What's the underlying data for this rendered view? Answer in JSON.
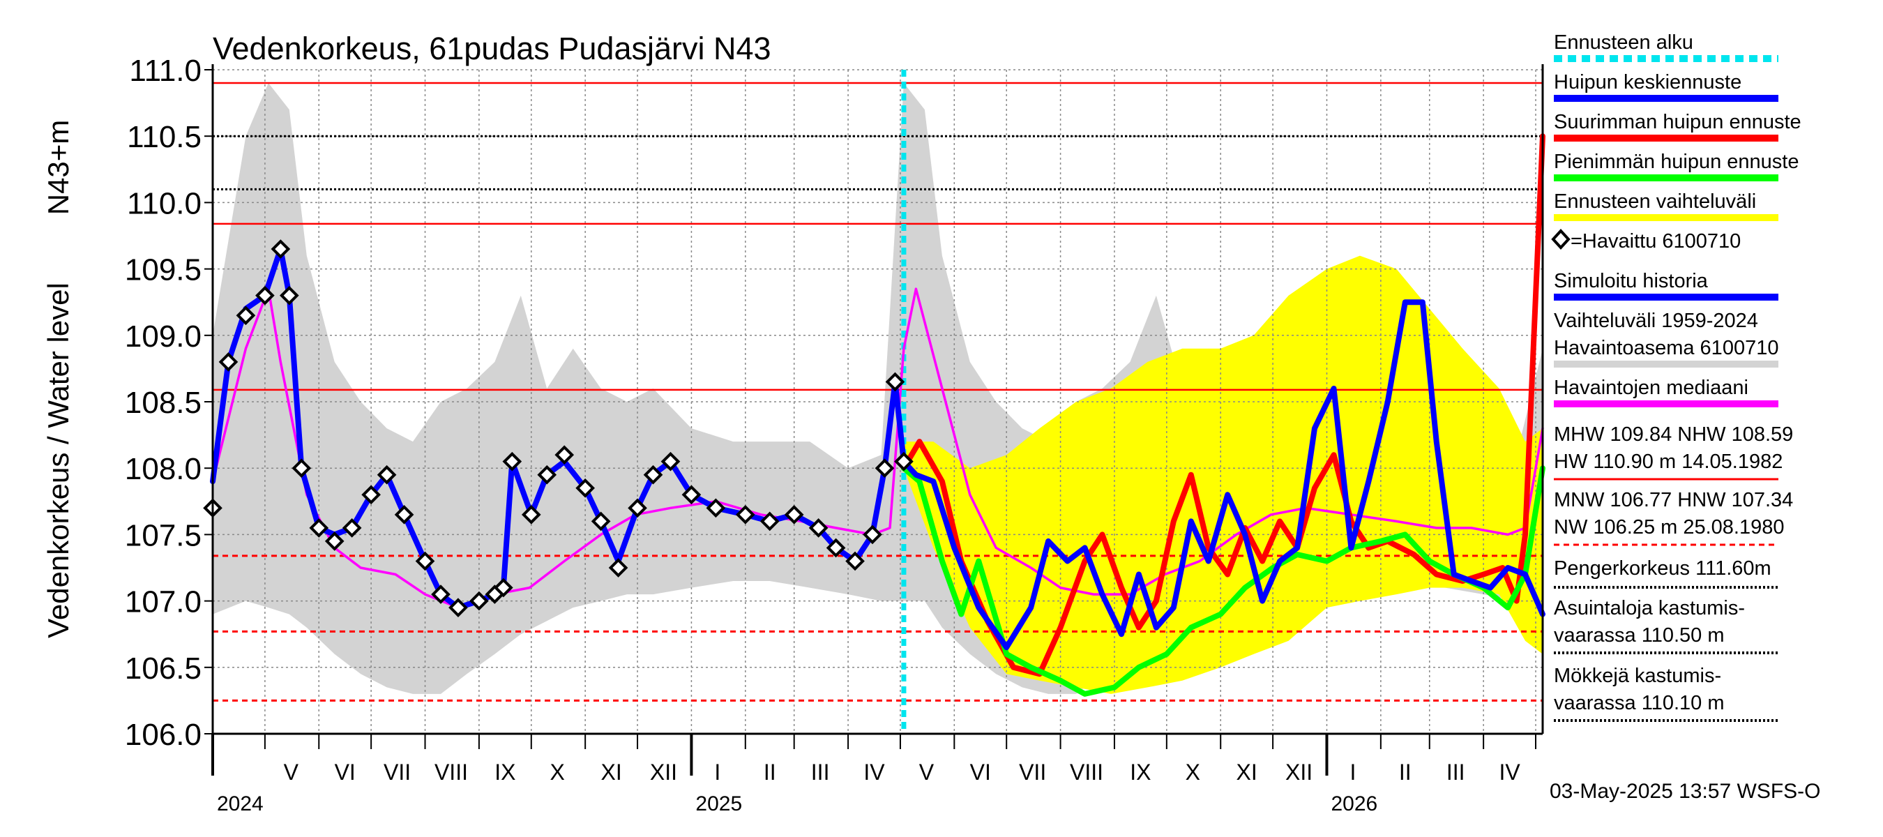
{
  "chart_data": {
    "type": "line",
    "title": "Vedenkorkeus, 61pudas Pudasjärvi N43",
    "ylabel": "Vedenkorkeus / Water level",
    "ylabel_unit": "N43+m",
    "ylim": [
      106.0,
      111.0
    ],
    "yticks": [
      "106.0",
      "106.5",
      "107.0",
      "107.5",
      "108.0",
      "108.5",
      "109.0",
      "109.5",
      "110.0",
      "110.5",
      "111.0"
    ],
    "x_range": [
      "2024-04-01",
      "2026-05-05"
    ],
    "forecast_start": "2025-05-03",
    "month_labels": [
      {
        "label": "V",
        "date": "2024-05-16"
      },
      {
        "label": "VI",
        "date": "2024-06-16"
      },
      {
        "label": "VII",
        "date": "2024-07-16"
      },
      {
        "label": "VIII",
        "date": "2024-08-16"
      },
      {
        "label": "IX",
        "date": "2024-09-16"
      },
      {
        "label": "X",
        "date": "2024-10-16"
      },
      {
        "label": "XI",
        "date": "2024-11-16"
      },
      {
        "label": "XII",
        "date": "2024-12-16"
      },
      {
        "label": "I",
        "date": "2025-01-16"
      },
      {
        "label": "II",
        "date": "2025-02-15"
      },
      {
        "label": "III",
        "date": "2025-03-16"
      },
      {
        "label": "IV",
        "date": "2025-04-16"
      },
      {
        "label": "V",
        "date": "2025-05-16"
      },
      {
        "label": "VI",
        "date": "2025-06-16"
      },
      {
        "label": "VII",
        "date": "2025-07-16"
      },
      {
        "label": "VIII",
        "date": "2025-08-16"
      },
      {
        "label": "IX",
        "date": "2025-09-16"
      },
      {
        "label": "X",
        "date": "2025-10-16"
      },
      {
        "label": "XI",
        "date": "2025-11-16"
      },
      {
        "label": "XII",
        "date": "2025-12-16"
      },
      {
        "label": "I",
        "date": "2026-01-16"
      },
      {
        "label": "II",
        "date": "2026-02-15"
      },
      {
        "label": "III",
        "date": "2026-03-16"
      },
      {
        "label": "IV",
        "date": "2026-04-16"
      }
    ],
    "year_labels": [
      {
        "label": "2024",
        "date": "2024-04-01"
      },
      {
        "label": "2025",
        "date": "2025-01-01"
      },
      {
        "label": "2026",
        "date": "2026-01-01"
      }
    ],
    "reference_lines": [
      {
        "value": 110.9,
        "style": "solid",
        "color": "#ff0000"
      },
      {
        "value": 110.5,
        "style": "dotted",
        "color": "#000000"
      },
      {
        "value": 110.1,
        "style": "dotted",
        "color": "#000000"
      },
      {
        "value": 109.84,
        "style": "solid",
        "color": "#ff0000"
      },
      {
        "value": 108.59,
        "style": "solid",
        "color": "#ff0000"
      },
      {
        "value": 107.34,
        "style": "dashed",
        "color": "#ff0000"
      },
      {
        "value": 106.77,
        "style": "dashed",
        "color": "#ff0000"
      },
      {
        "value": 106.25,
        "style": "dashed",
        "color": "#ff0000"
      }
    ],
    "grid": true,
    "legend_position": "right",
    "series": [
      {
        "name": "Vaihteluväli 1959-2024 Havaintoasema 6100710",
        "kind": "band",
        "color": "#d3d3d3",
        "x": [
          "2024-04-01",
          "2024-04-20",
          "2024-05-03",
          "2024-05-15",
          "2024-05-25",
          "2024-06-10",
          "2024-06-25",
          "2024-07-10",
          "2024-07-25",
          "2024-08-10",
          "2024-08-25",
          "2024-09-10",
          "2024-09-25",
          "2024-10-10",
          "2024-10-25",
          "2024-11-10",
          "2024-11-25",
          "2024-12-10",
          "2025-01-01",
          "2025-01-25",
          "2025-02-15",
          "2025-03-10",
          "2025-04-01",
          "2025-04-20",
          "2025-05-03",
          "2025-05-15",
          "2025-05-25",
          "2025-06-10",
          "2025-06-25",
          "2025-07-10",
          "2025-07-25",
          "2025-08-10",
          "2025-08-25",
          "2025-09-10",
          "2025-09-25",
          "2025-10-10",
          "2025-10-25",
          "2025-11-10",
          "2025-11-25",
          "2025-12-10",
          "2026-01-01",
          "2026-01-25",
          "2026-02-15",
          "2026-03-10",
          "2026-04-01",
          "2026-04-20",
          "2026-05-05"
        ],
        "low": [
          106.9,
          107.0,
          106.95,
          106.9,
          106.8,
          106.6,
          106.45,
          106.35,
          106.3,
          106.3,
          106.45,
          106.6,
          106.75,
          106.85,
          106.95,
          107.0,
          107.05,
          107.05,
          107.1,
          107.15,
          107.15,
          107.1,
          107.05,
          107.0,
          107.0,
          107.0,
          106.8,
          106.6,
          106.45,
          106.35,
          106.3,
          106.3,
          106.45,
          106.6,
          106.75,
          106.85,
          106.95,
          107.0,
          107.05,
          107.05,
          107.1,
          107.15,
          107.15,
          107.1,
          107.05,
          107.0,
          107.0
        ],
        "high": [
          109.0,
          110.5,
          110.9,
          110.7,
          109.6,
          108.8,
          108.5,
          108.3,
          108.2,
          108.5,
          108.6,
          108.8,
          109.3,
          108.6,
          108.9,
          108.6,
          108.5,
          108.6,
          108.3,
          108.2,
          108.2,
          108.2,
          108.0,
          108.1,
          110.9,
          110.7,
          109.6,
          108.8,
          108.5,
          108.3,
          108.2,
          108.5,
          108.6,
          108.8,
          109.3,
          108.6,
          108.9,
          108.6,
          108.5,
          108.6,
          108.3,
          108.2,
          108.2,
          108.2,
          108.0,
          108.1,
          108.9
        ]
      },
      {
        "name": "Ennusteen vaihteluväli",
        "kind": "band",
        "color": "#ffff00",
        "x": [
          "2025-05-03",
          "2025-05-20",
          "2025-06-10",
          "2025-07-01",
          "2025-07-20",
          "2025-08-10",
          "2025-08-30",
          "2025-09-20",
          "2025-10-10",
          "2025-11-01",
          "2025-11-20",
          "2025-12-10",
          "2026-01-01",
          "2026-01-20",
          "2026-02-10",
          "2026-03-01",
          "2026-03-20",
          "2026-04-10",
          "2026-04-25",
          "2026-05-05"
        ],
        "low": [
          108.0,
          107.4,
          106.8,
          106.45,
          106.4,
          106.35,
          106.3,
          106.35,
          106.4,
          106.5,
          106.6,
          106.7,
          106.95,
          107.0,
          107.05,
          107.1,
          107.1,
          107.05,
          106.7,
          106.6
        ],
        "high": [
          108.2,
          108.2,
          108.0,
          108.1,
          108.3,
          108.5,
          108.6,
          108.8,
          108.9,
          108.9,
          109.0,
          109.3,
          109.5,
          109.6,
          109.5,
          109.2,
          108.9,
          108.6,
          108.2,
          108.3
        ]
      },
      {
        "name": "Havaintojen mediaani",
        "kind": "line",
        "color": "#ff00ff",
        "x": [
          "2024-04-01",
          "2024-04-20",
          "2024-05-03",
          "2024-05-10",
          "2024-05-25",
          "2024-06-10",
          "2024-06-25",
          "2024-07-15",
          "2024-08-01",
          "2024-08-20",
          "2024-09-10",
          "2024-09-30",
          "2024-10-20",
          "2024-11-10",
          "2024-11-30",
          "2024-12-20",
          "2025-01-15",
          "2025-02-10",
          "2025-03-05",
          "2025-03-25",
          "2025-04-15",
          "2025-04-25",
          "2025-05-03",
          "2025-05-10",
          "2025-05-25",
          "2025-06-10",
          "2025-06-25",
          "2025-07-15",
          "2025-08-01",
          "2025-08-20",
          "2025-09-10",
          "2025-09-30",
          "2025-10-20",
          "2025-11-10",
          "2025-11-30",
          "2025-12-20",
          "2026-01-15",
          "2026-02-10",
          "2026-03-05",
          "2026-03-25",
          "2026-04-15",
          "2026-04-25",
          "2026-05-05"
        ],
        "y": [
          107.9,
          108.9,
          109.35,
          108.8,
          107.8,
          107.4,
          107.25,
          107.2,
          107.05,
          106.95,
          107.05,
          107.1,
          107.3,
          107.5,
          107.65,
          107.7,
          107.75,
          107.65,
          107.6,
          107.55,
          107.5,
          107.55,
          108.9,
          109.35,
          108.6,
          107.8,
          107.4,
          107.25,
          107.1,
          107.05,
          107.05,
          107.2,
          107.3,
          107.5,
          107.65,
          107.7,
          107.65,
          107.6,
          107.55,
          107.55,
          107.5,
          107.55,
          108.3
        ]
      },
      {
        "name": "Simuloitu historia",
        "kind": "line",
        "color": "#0000ff",
        "x": [
          "2024-04-01",
          "2024-04-10",
          "2024-04-20",
          "2024-05-01",
          "2024-05-10",
          "2024-05-15",
          "2024-05-22",
          "2024-06-01",
          "2024-06-10",
          "2024-06-20",
          "2024-07-01",
          "2024-07-10",
          "2024-07-20",
          "2024-08-01",
          "2024-08-10",
          "2024-08-20",
          "2024-09-01",
          "2024-09-10",
          "2024-09-15",
          "2024-09-20",
          "2024-10-01",
          "2024-10-10",
          "2024-10-20",
          "2024-11-01",
          "2024-11-10",
          "2024-11-20",
          "2024-12-01",
          "2024-12-10",
          "2024-12-20",
          "2025-01-01",
          "2025-01-15",
          "2025-02-01",
          "2025-02-15",
          "2025-03-01",
          "2025-03-15",
          "2025-03-25",
          "2025-04-05",
          "2025-04-15",
          "2025-04-22",
          "2025-04-28",
          "2025-05-03"
        ],
        "y": [
          107.9,
          108.8,
          109.2,
          109.3,
          109.65,
          109.3,
          108.0,
          107.55,
          107.5,
          107.55,
          107.8,
          107.95,
          107.65,
          107.3,
          107.05,
          106.95,
          107.0,
          107.05,
          107.1,
          108.05,
          107.65,
          107.95,
          108.05,
          107.85,
          107.6,
          107.3,
          107.7,
          107.95,
          108.05,
          107.8,
          107.7,
          107.65,
          107.6,
          107.65,
          107.55,
          107.4,
          107.3,
          107.5,
          108.0,
          108.65,
          108.05
        ]
      },
      {
        "name": "Havaittu 6100710",
        "kind": "markers",
        "color": "#000000",
        "x": [
          "2024-04-01",
          "2024-04-10",
          "2024-04-20",
          "2024-05-01",
          "2024-05-10",
          "2024-05-15",
          "2024-05-22",
          "2024-06-01",
          "2024-06-10",
          "2024-06-20",
          "2024-07-01",
          "2024-07-10",
          "2024-07-20",
          "2024-08-01",
          "2024-08-10",
          "2024-08-20",
          "2024-09-01",
          "2024-09-10",
          "2024-09-15",
          "2024-09-20",
          "2024-10-01",
          "2024-10-10",
          "2024-10-20",
          "2024-11-01",
          "2024-11-10",
          "2024-11-20",
          "2024-12-01",
          "2024-12-10",
          "2024-12-20",
          "2025-01-01",
          "2025-01-15",
          "2025-02-01",
          "2025-02-15",
          "2025-03-01",
          "2025-03-15",
          "2025-03-25",
          "2025-04-05",
          "2025-04-15",
          "2025-04-22",
          "2025-04-28",
          "2025-05-03"
        ],
        "y": [
          107.7,
          108.8,
          109.15,
          109.3,
          109.65,
          109.3,
          108.0,
          107.55,
          107.45,
          107.55,
          107.8,
          107.95,
          107.65,
          107.3,
          107.05,
          106.95,
          107.0,
          107.05,
          107.1,
          108.05,
          107.65,
          107.95,
          108.1,
          107.85,
          107.6,
          107.25,
          107.7,
          107.95,
          108.05,
          107.8,
          107.7,
          107.65,
          107.6,
          107.65,
          107.55,
          107.4,
          107.3,
          107.5,
          108.0,
          108.65,
          108.05
        ]
      },
      {
        "name": "Suurimman huipun ennuste",
        "kind": "line",
        "color": "#ff0000",
        "x": [
          "2025-05-03",
          "2025-05-12",
          "2025-05-25",
          "2025-06-05",
          "2025-06-20",
          "2025-07-05",
          "2025-07-20",
          "2025-08-01",
          "2025-08-15",
          "2025-08-25",
          "2025-09-05",
          "2025-09-15",
          "2025-09-25",
          "2025-10-05",
          "2025-10-15",
          "2025-10-25",
          "2025-11-05",
          "2025-11-15",
          "2025-11-25",
          "2025-12-05",
          "2025-12-15",
          "2025-12-25",
          "2026-01-05",
          "2026-01-15",
          "2026-01-25",
          "2026-02-05",
          "2026-02-20",
          "2026-03-05",
          "2026-03-20",
          "2026-04-01",
          "2026-04-12",
          "2026-04-20",
          "2026-04-25",
          "2026-05-05"
        ],
        "y": [
          108.0,
          108.2,
          107.9,
          107.3,
          106.85,
          106.5,
          106.45,
          106.8,
          107.3,
          107.5,
          107.1,
          106.8,
          107.0,
          107.6,
          107.95,
          107.4,
          107.2,
          107.55,
          107.3,
          107.6,
          107.4,
          107.85,
          108.1,
          107.6,
          107.4,
          107.45,
          107.35,
          107.2,
          107.15,
          107.2,
          107.25,
          107.0,
          107.5,
          110.5
        ]
      },
      {
        "name": "Pienimmän huipun ennuste",
        "kind": "line",
        "color": "#00ff00",
        "x": [
          "2025-05-03",
          "2025-05-12",
          "2025-05-25",
          "2025-06-05",
          "2025-06-15",
          "2025-07-01",
          "2025-07-15",
          "2025-08-01",
          "2025-08-15",
          "2025-09-01",
          "2025-09-15",
          "2025-10-01",
          "2025-10-15",
          "2025-11-01",
          "2025-11-15",
          "2025-12-01",
          "2025-12-15",
          "2026-01-01",
          "2026-01-15",
          "2026-02-01",
          "2026-02-15",
          "2026-03-01",
          "2026-03-15",
          "2026-04-01",
          "2026-04-15",
          "2026-04-25",
          "2026-05-05"
        ],
        "y": [
          108.0,
          107.9,
          107.3,
          106.9,
          107.3,
          106.6,
          106.5,
          106.4,
          106.3,
          106.35,
          106.5,
          106.6,
          106.8,
          106.9,
          107.1,
          107.25,
          107.35,
          107.3,
          107.4,
          107.45,
          107.5,
          107.3,
          107.2,
          107.1,
          106.95,
          107.2,
          108.0
        ]
      },
      {
        "name": "Huipun keskiennuste",
        "kind": "line",
        "color": "#0000ff",
        "x": [
          "2025-05-03",
          "2025-05-10",
          "2025-05-20",
          "2025-06-01",
          "2025-06-15",
          "2025-07-01",
          "2025-07-15",
          "2025-07-25",
          "2025-08-05",
          "2025-08-15",
          "2025-08-25",
          "2025-09-05",
          "2025-09-15",
          "2025-09-25",
          "2025-10-05",
          "2025-10-15",
          "2025-10-25",
          "2025-11-05",
          "2025-11-15",
          "2025-11-25",
          "2025-12-05",
          "2025-12-15",
          "2025-12-25",
          "2026-01-05",
          "2026-01-15",
          "2026-01-25",
          "2026-02-05",
          "2026-02-15",
          "2026-02-25",
          "2026-03-05",
          "2026-03-15",
          "2026-03-25",
          "2026-04-05",
          "2026-04-15",
          "2026-04-25",
          "2026-05-05"
        ],
        "y": [
          108.05,
          107.95,
          107.9,
          107.4,
          106.95,
          106.65,
          106.95,
          107.45,
          107.3,
          107.4,
          107.05,
          106.75,
          107.2,
          106.8,
          106.95,
          107.6,
          107.3,
          107.8,
          107.5,
          107.0,
          107.3,
          107.4,
          108.3,
          108.6,
          107.4,
          107.9,
          108.5,
          109.25,
          109.25,
          108.2,
          107.2,
          107.15,
          107.1,
          107.25,
          107.2,
          106.9
        ]
      }
    ]
  },
  "legend": [
    {
      "label": "Ennusteen alku",
      "color": "#00e5ee",
      "style": "dashed"
    },
    {
      "label": "Huipun keskiennuste",
      "color": "#0000ff",
      "style": "solid"
    },
    {
      "label": "Suurimman huipun ennuste",
      "color": "#ff0000",
      "style": "solid"
    },
    {
      "label": "Pienimmän huipun ennuste",
      "color": "#00ff00",
      "style": "solid"
    },
    {
      "label": "Ennusteen vaihteluväli",
      "color": "#ffff00",
      "style": "solid"
    },
    {
      "label": "=Havaittu 6100710",
      "color": "#000000",
      "style": "marker"
    },
    {
      "label": "Simuloitu historia",
      "color": "#0000ff",
      "style": "solid"
    },
    {
      "label": "Vaihteluväli 1959-2024",
      "color": "#d3d3d3",
      "style": "none"
    },
    {
      "label": " Havaintoasema 6100710",
      "color": "#d3d3d3",
      "style": "solid"
    },
    {
      "label": "Havaintojen mediaani",
      "color": "#ff00ff",
      "style": "solid"
    }
  ],
  "stats": [
    {
      "line1": "MHW 109.84 NHW 108.59",
      "line2": "HW 110.90 m 14.05.1982",
      "color": "#ff0000",
      "style": "solid"
    },
    {
      "line1": "MNW 106.77 HNW 107.34",
      "line2": "NW 106.25 m 25.08.1980",
      "color": "#ff0000",
      "style": "dashed"
    }
  ],
  "thresholds": [
    {
      "line1": "Pengerkorkeus 111.60m",
      "line2": "",
      "color": "#000000",
      "style": "dotted"
    },
    {
      "line1": "Asuintaloja kastumis-",
      "line2": "vaarassa 110.50 m",
      "color": "#000000",
      "style": "dotted"
    },
    {
      "line1": "Mökkejä kastumis-",
      "line2": "  vaarassa 110.10 m",
      "color": "#000000",
      "style": "dotted"
    }
  ],
  "footer": "03-May-2025 13:57 WSFS-O"
}
